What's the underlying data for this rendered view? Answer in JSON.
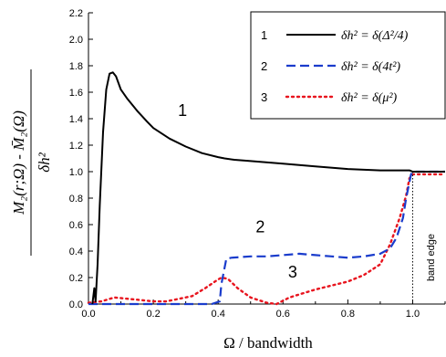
{
  "chart_data": {
    "type": "line",
    "xlabel": "Ω / bandwidth",
    "ylabel": {
      "numerator": "M₂(r;Ω) - M̄₂(Ω)",
      "denominator": "δh²"
    },
    "xlim": [
      0,
      1.1
    ],
    "ylim": [
      0,
      2.2
    ],
    "x_ticks": [
      0.0,
      0.2,
      0.4,
      0.6,
      0.8,
      1.0
    ],
    "x_tick_labels": [
      "0.0",
      "0.2",
      "0.4",
      "0.6",
      "0.8",
      "1.0"
    ],
    "y_ticks": [
      0.0,
      0.2,
      0.4,
      0.6,
      0.8,
      1.0,
      1.2,
      1.4,
      1.6,
      1.8,
      2.0,
      2.2
    ],
    "y_tick_labels": [
      "0.0",
      "0.2",
      "0.4",
      "0.6",
      "0.8",
      "1.0",
      "1.2",
      "1.4",
      "1.6",
      "1.8",
      "2.0",
      "2.2"
    ],
    "grid": false,
    "legend_position": "top-right",
    "annotations": [
      {
        "text": "1",
        "x": 0.29,
        "y": 1.42
      },
      {
        "text": "2",
        "x": 0.53,
        "y": 0.54
      },
      {
        "text": "3",
        "x": 0.63,
        "y": 0.2
      }
    ],
    "vertical_line": {
      "x": 1.0,
      "label": "band edge"
    },
    "series": [
      {
        "number": "1",
        "legend": "δh² = δ(Δ²/4)",
        "color": "#000000",
        "style": "solid",
        "x": [
          0.012,
          0.018,
          0.022,
          0.028,
          0.035,
          0.045,
          0.055,
          0.065,
          0.075,
          0.085,
          0.1,
          0.12,
          0.15,
          0.18,
          0.2,
          0.25,
          0.3,
          0.35,
          0.4,
          0.42,
          0.45,
          0.5,
          0.6,
          0.7,
          0.8,
          0.9,
          0.99,
          1.0,
          1.05,
          1.1
        ],
        "y": [
          0.0,
          0.12,
          0.02,
          0.3,
          0.75,
          1.3,
          1.62,
          1.74,
          1.75,
          1.72,
          1.62,
          1.55,
          1.46,
          1.38,
          1.33,
          1.25,
          1.19,
          1.14,
          1.11,
          1.1,
          1.09,
          1.08,
          1.06,
          1.04,
          1.02,
          1.01,
          1.01,
          1.0,
          1.0,
          1.0
        ]
      },
      {
        "number": "2",
        "legend": "δh² = δ(4t²)",
        "color": "#1a3ccc",
        "style": "dashed",
        "x": [
          0.0,
          0.1,
          0.2,
          0.3,
          0.38,
          0.405,
          0.41,
          0.425,
          0.44,
          0.5,
          0.55,
          0.6,
          0.65,
          0.7,
          0.75,
          0.8,
          0.85,
          0.9,
          0.93,
          0.95,
          0.97,
          0.98,
          0.99,
          0.995,
          1.0,
          1.05,
          1.1
        ],
        "y": [
          0.0,
          0.0,
          0.0,
          0.0,
          0.0,
          0.02,
          0.15,
          0.34,
          0.35,
          0.36,
          0.36,
          0.37,
          0.38,
          0.37,
          0.36,
          0.35,
          0.36,
          0.38,
          0.42,
          0.5,
          0.65,
          0.8,
          0.92,
          0.98,
          1.0,
          1.0,
          1.0
        ]
      },
      {
        "number": "3",
        "legend": "δh² = δ(μ²)",
        "color": "#e8141e",
        "style": "dotted",
        "x": [
          0.0,
          0.04,
          0.08,
          0.12,
          0.16,
          0.2,
          0.24,
          0.28,
          0.32,
          0.36,
          0.39,
          0.41,
          0.43,
          0.46,
          0.5,
          0.55,
          0.58,
          0.62,
          0.66,
          0.7,
          0.75,
          0.8,
          0.85,
          0.9,
          0.93,
          0.96,
          0.98,
          0.99,
          1.0,
          1.05,
          1.1
        ],
        "y": [
          0.01,
          0.02,
          0.05,
          0.04,
          0.03,
          0.02,
          0.02,
          0.04,
          0.06,
          0.12,
          0.17,
          0.2,
          0.19,
          0.12,
          0.05,
          0.01,
          0.0,
          0.05,
          0.08,
          0.11,
          0.14,
          0.17,
          0.22,
          0.3,
          0.45,
          0.65,
          0.82,
          0.95,
          0.98,
          0.98,
          0.98
        ]
      }
    ]
  }
}
